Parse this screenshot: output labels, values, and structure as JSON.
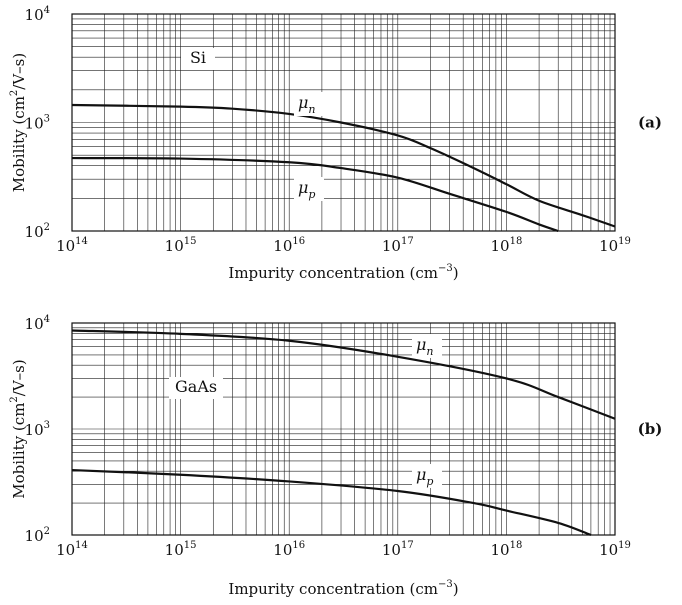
{
  "chart_data": [
    {
      "type": "line",
      "panel_label": "(a)",
      "material": "Si",
      "xlabel_text": "Impurity concentration (cm",
      "xlabel_exp": "−3",
      "xlabel_tail": ")",
      "ylabel_text": "Mobility (cm",
      "ylabel_exp": "2",
      "ylabel_tail": "/V–s)",
      "xscale": "log",
      "yscale": "log",
      "xlim": [
        100000000000000.0,
        1e+19
      ],
      "ylim": [
        100,
        10000
      ],
      "grid": true,
      "x_ticks": [
        {
          "base": "10",
          "exp": "14"
        },
        {
          "base": "10",
          "exp": "15"
        },
        {
          "base": "10",
          "exp": "16"
        },
        {
          "base": "10",
          "exp": "17"
        },
        {
          "base": "10",
          "exp": "18"
        },
        {
          "base": "10",
          "exp": "19"
        }
      ],
      "y_ticks": [
        {
          "base": "10",
          "exp": "2"
        },
        {
          "base": "10",
          "exp": "3"
        },
        {
          "base": "10",
          "exp": "4"
        }
      ],
      "series": [
        {
          "name": "μ",
          "name_sub": "n",
          "x": [
            100000000000000.0,
            1000000000000000.0,
            3000000000000000.0,
            1e+16,
            3e+16,
            1e+17,
            2e+17,
            5e+17,
            1e+18,
            2e+18,
            5e+18,
            1e+19
          ],
          "y": [
            1450,
            1400,
            1340,
            1200,
            1000,
            760,
            580,
            380,
            270,
            190,
            140,
            110
          ]
        },
        {
          "name": "μ",
          "name_sub": "p",
          "x": [
            100000000000000.0,
            1000000000000000.0,
            1e+16,
            3e+16,
            1e+17,
            3e+17,
            1e+18,
            2e+18,
            3e+18
          ],
          "y": [
            470,
            465,
            430,
            380,
            310,
            220,
            150,
            115,
            100
          ]
        }
      ]
    },
    {
      "type": "line",
      "panel_label": "(b)",
      "material": "GaAs",
      "xlabel_text": "Impurity concentration (cm",
      "xlabel_exp": "−3",
      "xlabel_tail": ")",
      "ylabel_text": "Mobility (cm",
      "ylabel_exp": "2",
      "ylabel_tail": "/V–s)",
      "xscale": "log",
      "yscale": "log",
      "xlim": [
        100000000000000.0,
        1e+19
      ],
      "ylim": [
        100,
        10000
      ],
      "grid": true,
      "x_ticks": [
        {
          "base": "10",
          "exp": "14"
        },
        {
          "base": "10",
          "exp": "15"
        },
        {
          "base": "10",
          "exp": "16"
        },
        {
          "base": "10",
          "exp": "17"
        },
        {
          "base": "10",
          "exp": "18"
        },
        {
          "base": "10",
          "exp": "19"
        }
      ],
      "y_ticks": [
        {
          "base": "10",
          "exp": "2"
        },
        {
          "base": "10",
          "exp": "3"
        },
        {
          "base": "10",
          "exp": "4"
        }
      ],
      "series": [
        {
          "name": "μ",
          "name_sub": "n",
          "x": [
            100000000000000.0,
            1000000000000000.0,
            1e+16,
            1e+17,
            1e+18,
            3e+18,
            1e+19
          ],
          "y": [
            8500,
            7900,
            6800,
            4800,
            3000,
            2000,
            1250
          ]
        },
        {
          "name": "μ",
          "name_sub": "p",
          "x": [
            100000000000000.0,
            1000000000000000.0,
            1e+16,
            1e+17,
            5e+17,
            1e+18,
            3e+18,
            6e+18
          ],
          "y": [
            410,
            370,
            320,
            260,
            200,
            170,
            130,
            100
          ]
        }
      ]
    }
  ]
}
